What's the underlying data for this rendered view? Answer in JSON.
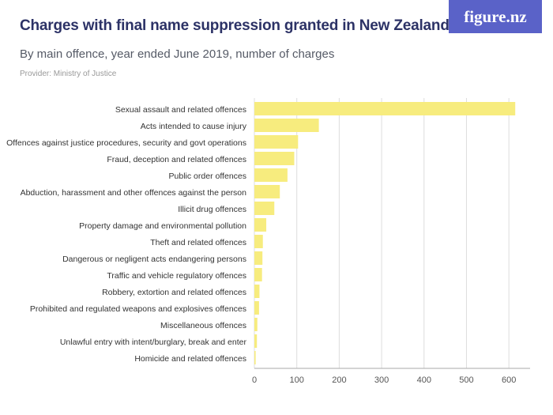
{
  "header": {
    "title": "Charges with final name suppression granted in New Zealand",
    "subtitle": "By main offence, year ended June 2019, number of charges",
    "provider": "Provider: Ministry of Justice",
    "brand": "figure.nz"
  },
  "colors": {
    "bar": "#f7ec7e",
    "title": "#2c3266",
    "brand_bg": "#5a62c8",
    "grid": "#dddddd"
  },
  "chart_data": {
    "type": "bar",
    "orientation": "horizontal",
    "title": "Charges with final name suppression granted in New Zealand",
    "subtitle": "By main offence, year ended June 2019, number of charges",
    "xlim": [
      0,
      650
    ],
    "xticks": [
      0,
      100,
      200,
      300,
      400,
      500,
      600
    ],
    "grid": true,
    "categories": [
      "Sexual assault and related offences",
      "Acts intended to cause injury",
      "Offences against justice procedures, security and govt operations",
      "Fraud, deception and related offences",
      "Public order offences",
      "Abduction, harassment and other offences against the person",
      "Illicit drug offences",
      "Property damage and environmental pollution",
      "Theft and related offences",
      "Dangerous or negligent acts endangering persons",
      "Traffic and vehicle regulatory offences",
      "Robbery, extortion and related offences",
      "Prohibited and regulated weapons and explosives offences",
      "Miscellaneous offences",
      "Unlawful entry with intent/burglary, break and enter",
      "Homicide and related offences"
    ],
    "values": [
      615,
      152,
      103,
      94,
      78,
      60,
      47,
      28,
      20,
      19,
      18,
      12,
      11,
      7,
      6,
      3
    ]
  }
}
